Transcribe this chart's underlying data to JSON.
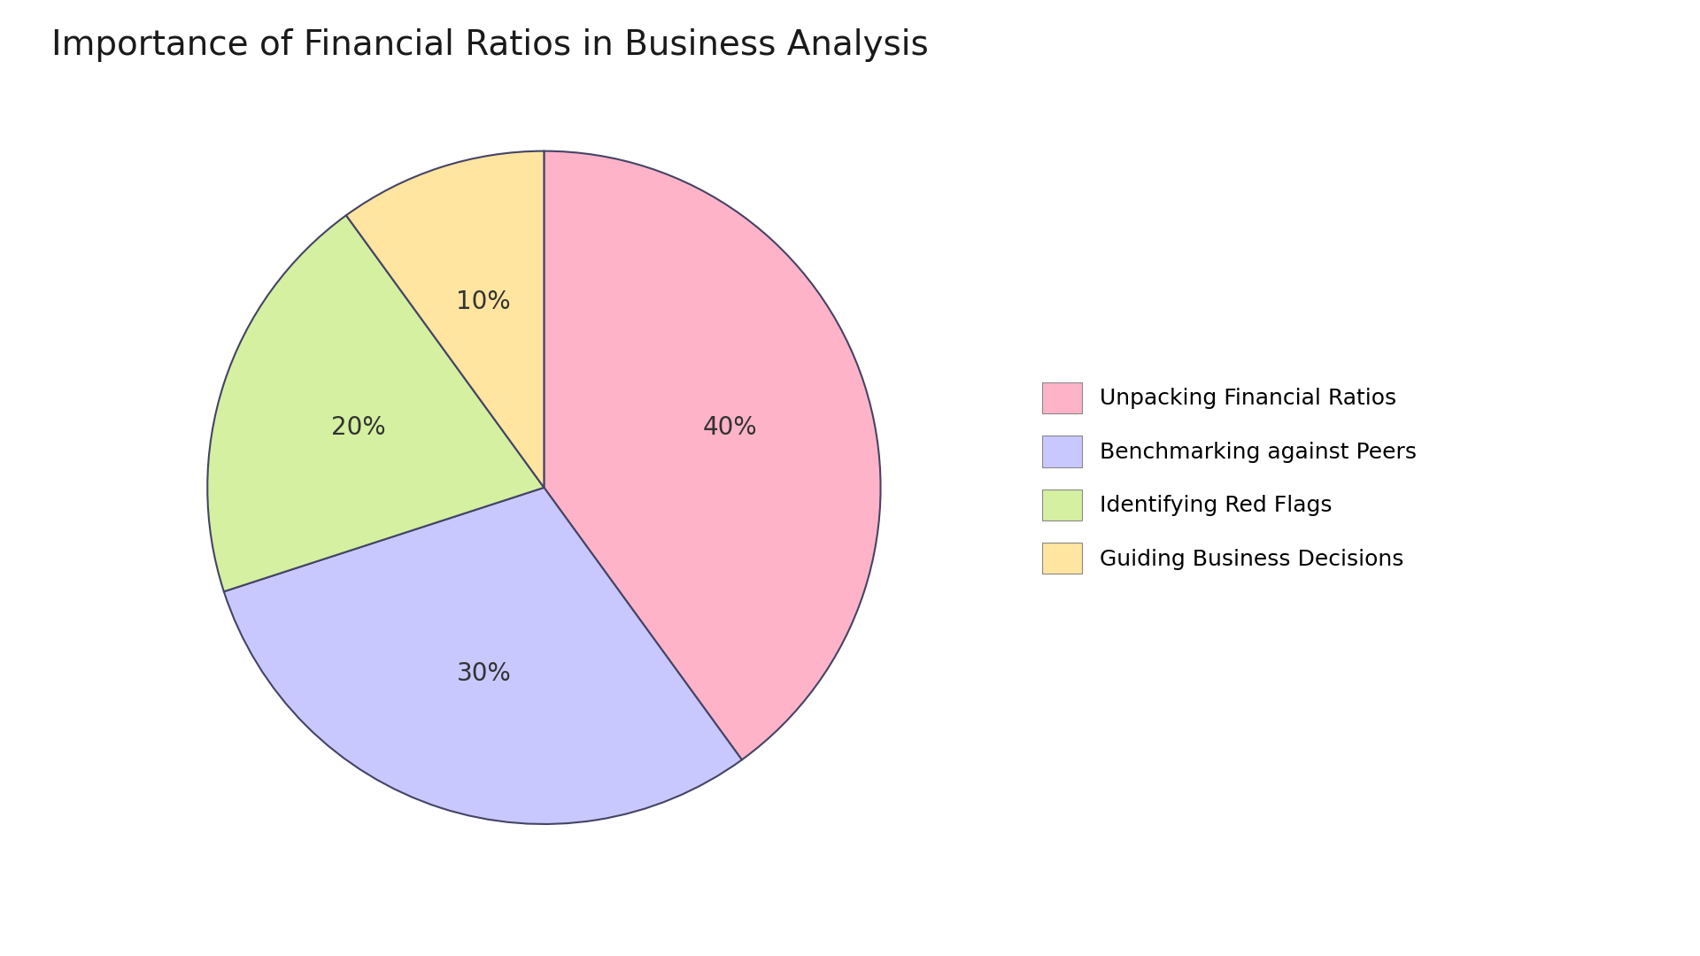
{
  "title": "Importance of Financial Ratios in Business Analysis",
  "labels": [
    "Unpacking Financial Ratios",
    "Benchmarking against Peers",
    "Identifying Red Flags",
    "Guiding Business Decisions"
  ],
  "values": [
    40,
    30,
    20,
    10
  ],
  "colors": [
    "#FFB3C8",
    "#C8C8FF",
    "#D4F0A0",
    "#FFE5A0"
  ],
  "edge_color": "#444466",
  "pct_labels": [
    "40%",
    "30%",
    "20%",
    "10%"
  ],
  "startangle": 90,
  "title_fontsize": 28,
  "pct_fontsize": 20,
  "legend_fontsize": 18,
  "background_color": "#FFFFFF"
}
